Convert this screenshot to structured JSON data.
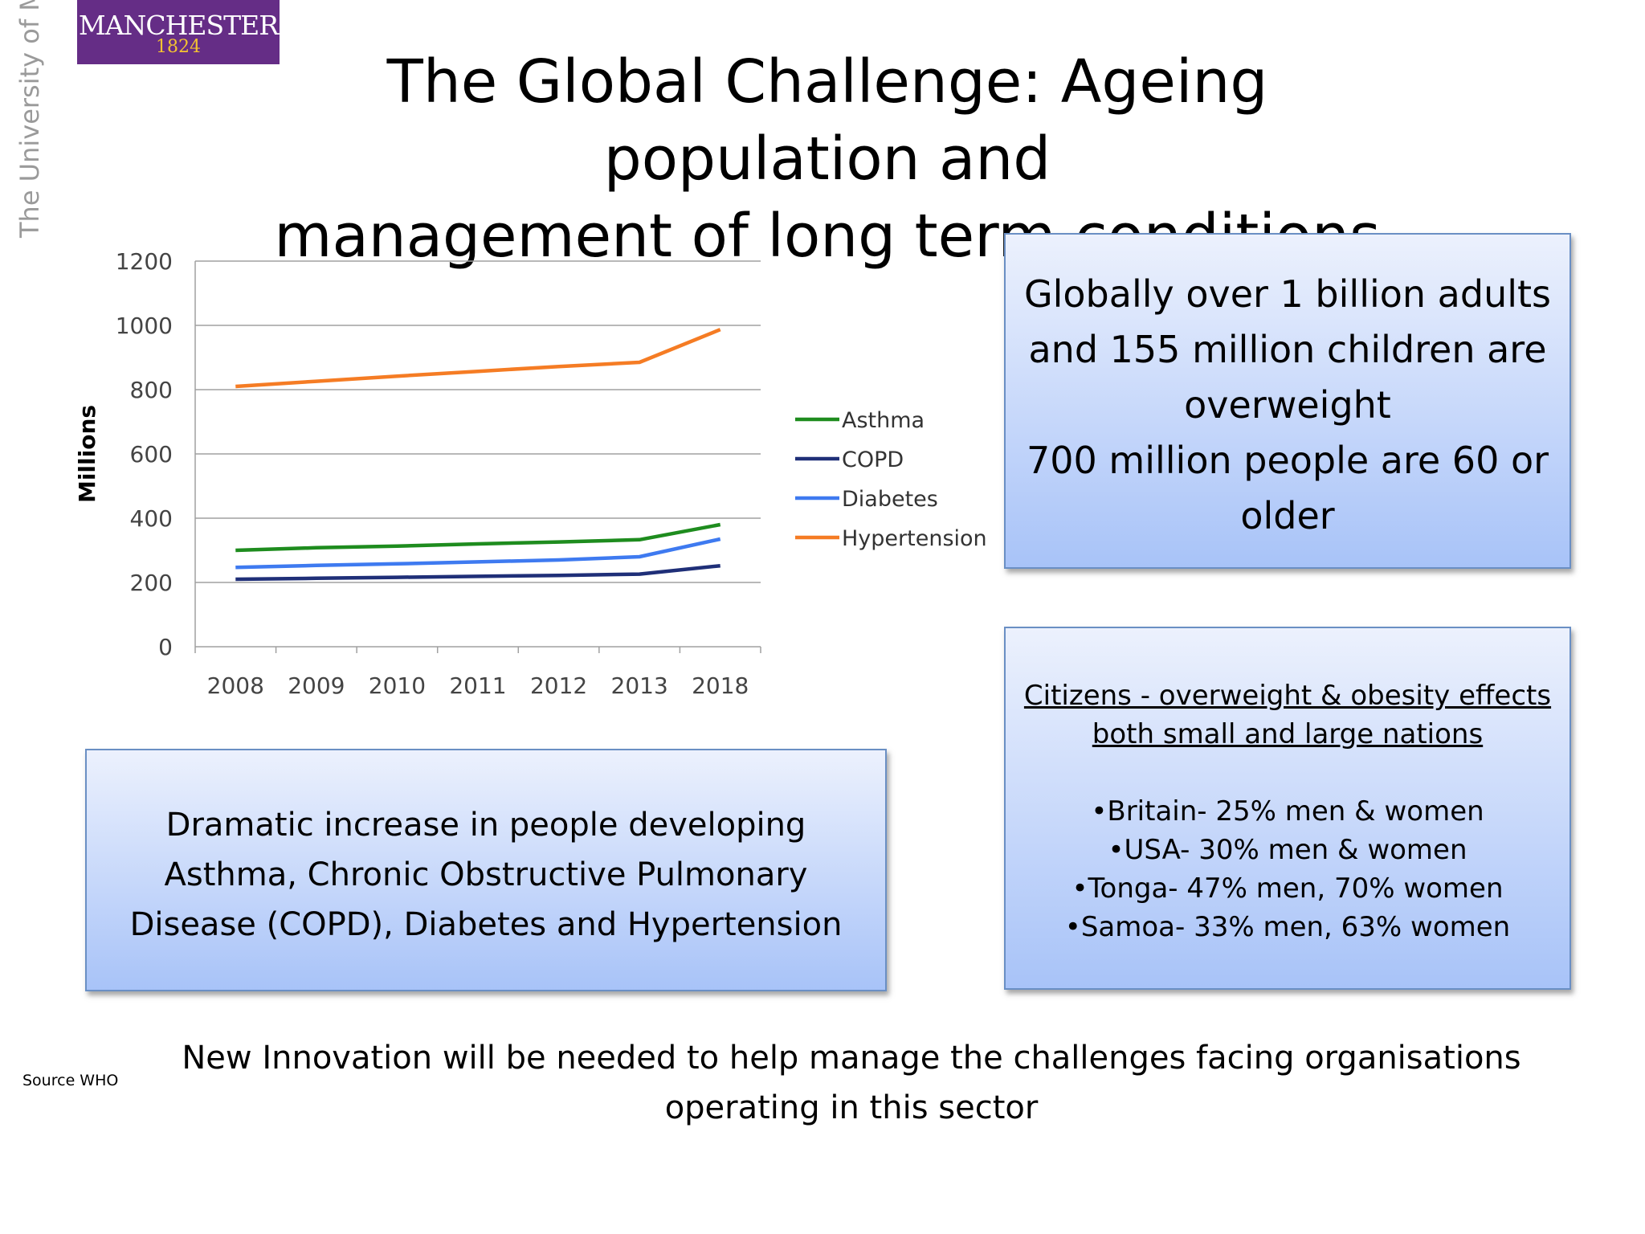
{
  "logo": {
    "name": "MANCHESTER",
    "year": "1824",
    "university": "The University of Manchester"
  },
  "title": [
    "The Global Challenge: Ageing population and",
    "management of long term conditions"
  ],
  "chart_data": {
    "type": "line",
    "title": "",
    "xlabel": "",
    "ylabel": "Millions",
    "categories": [
      "2008",
      "2009",
      "2010",
      "2011",
      "2012",
      "2013",
      "2018"
    ],
    "ylim": [
      0,
      1200
    ],
    "yticks": [
      "0",
      "200",
      "400",
      "600",
      "800",
      "1000",
      "1200"
    ],
    "grid": true,
    "legend_position": "right",
    "series": [
      {
        "name": "Asthma",
        "color": "#1e8c1e",
        "values": [
          300,
          308,
          313,
          320,
          326,
          333,
          380
        ]
      },
      {
        "name": "COPD",
        "color": "#1f2f78",
        "values": [
          210,
          213,
          216,
          219,
          222,
          226,
          252
        ]
      },
      {
        "name": "Diabetes",
        "color": "#3e7af0",
        "values": [
          247,
          253,
          258,
          264,
          270,
          280,
          335
        ]
      },
      {
        "name": "Hypertension",
        "color": "#f57c24",
        "values": [
          810,
          826,
          842,
          857,
          872,
          885,
          987
        ]
      }
    ]
  },
  "box1": {
    "lines": [
      "Globally over 1 billion adults",
      "and 155 million children are",
      "overweight",
      "700 million people are 60 or",
      "older"
    ]
  },
  "box2": {
    "lines": [
      "Dramatic increase in people developing",
      "Asthma, Chronic Obstructive Pulmonary",
      "Disease (COPD), Diabetes and Hypertension"
    ]
  },
  "box3": {
    "heading": [
      "Citizens - overweight & obesity effects",
      "both small and large nations"
    ],
    "items": [
      "•Britain- 25% men & women",
      "•USA- 30% men & women",
      "•Tonga- 47% men, 70% women",
      "•Samoa- 33% men, 63% women"
    ]
  },
  "bottom_message": [
    "New Innovation will be needed to help manage the challenges facing organisations",
    "operating in this sector"
  ],
  "source": "Source WHO",
  "colors": {
    "logo_bg": "#652d86",
    "logo_year": "#f4c430",
    "box_border": "#6a8fc4"
  }
}
